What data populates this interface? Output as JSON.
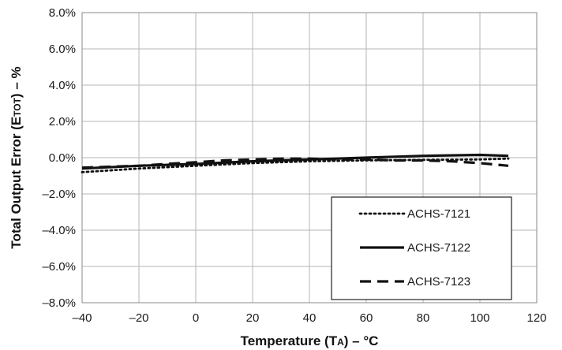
{
  "chart_data": {
    "type": "line",
    "xlabel": "Temperature (T",
    "xlabel_sub": "A",
    "xlabel_suffix": ") – °C",
    "ylabel": "Total Output Error (E",
    "ylabel_sub": "TOT",
    "ylabel_suffix": ") – %",
    "xlim": [
      -40,
      120
    ],
    "ylim": [
      -8.0,
      8.0
    ],
    "xticks": [
      -40,
      -20,
      0,
      20,
      40,
      60,
      80,
      100,
      120
    ],
    "xtick_labels": [
      "–40",
      "–20",
      "0",
      "20",
      "40",
      "60",
      "80",
      "100",
      "120"
    ],
    "yticks": [
      8,
      6,
      4,
      2,
      0,
      -2,
      -4,
      -6,
      -8
    ],
    "ytick_labels": [
      "8.0%",
      "6.0%",
      "4.0%",
      "2.0%",
      "0.0%",
      "–2.0%",
      "–4.0%",
      "–6.0%",
      "–8.0%"
    ],
    "grid": true,
    "legend_position": "bottom-right",
    "series": [
      {
        "name": "ACHS-7121",
        "style": "dotted",
        "x": [
          -40,
          -20,
          0,
          20,
          40,
          60,
          80,
          100,
          110
        ],
        "y": [
          -0.8,
          -0.6,
          -0.45,
          -0.3,
          -0.2,
          -0.15,
          -0.12,
          -0.1,
          -0.05
        ]
      },
      {
        "name": "ACHS-7122",
        "style": "solid",
        "x": [
          -40,
          -20,
          0,
          20,
          40,
          60,
          80,
          100,
          110
        ],
        "y": [
          -0.6,
          -0.45,
          -0.35,
          -0.2,
          -0.1,
          0.0,
          0.1,
          0.15,
          0.1
        ]
      },
      {
        "name": "ACHS-7123",
        "style": "dashed",
        "x": [
          -40,
          -20,
          -10,
          0,
          10,
          20,
          30,
          40,
          50,
          60,
          70,
          80,
          90,
          100,
          110
        ],
        "y": [
          -0.55,
          -0.45,
          -0.35,
          -0.25,
          -0.15,
          -0.1,
          -0.05,
          -0.05,
          -0.1,
          -0.1,
          -0.15,
          -0.15,
          -0.2,
          -0.3,
          -0.45
        ]
      }
    ]
  }
}
